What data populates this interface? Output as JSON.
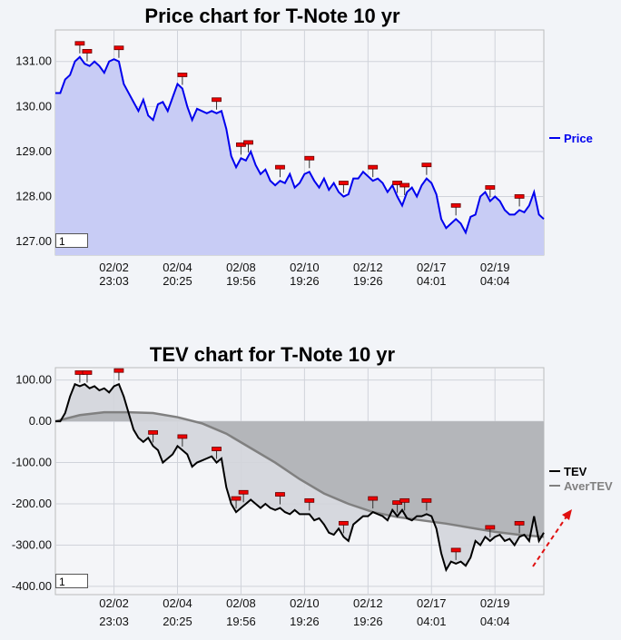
{
  "chart_data": [
    {
      "type": "area",
      "title": "Price chart for T-Note 10 yr",
      "ylim": [
        126.7,
        131.7
      ],
      "yticks": [
        "131.00",
        "130.00",
        "129.00",
        "128.00",
        "127.00"
      ],
      "ytick_values": [
        131,
        130,
        129,
        128,
        127
      ],
      "xticks": [
        {
          "date": "02/02",
          "time": "23:03"
        },
        {
          "date": "02/04",
          "time": "20:25"
        },
        {
          "date": "02/08",
          "time": "19:56"
        },
        {
          "date": "02/10",
          "time": "19:26"
        },
        {
          "date": "02/12",
          "time": "19:26"
        },
        {
          "date": "02/17",
          "time": "04:01"
        },
        {
          "date": "02/19",
          "time": "04:04"
        }
      ],
      "xtick_positions": [
        12,
        25,
        38,
        51,
        64,
        77,
        90
      ],
      "x_range": [
        0,
        100
      ],
      "series": [
        {
          "name": "Price",
          "color": "#0000ee",
          "fill": "#c8ccf5",
          "points": [
            [
              0,
              130.3
            ],
            [
              1,
              130.3
            ],
            [
              2,
              130.6
            ],
            [
              3,
              130.7
            ],
            [
              4,
              131.0
            ],
            [
              5,
              131.1
            ],
            [
              6,
              130.95
            ],
            [
              7,
              130.9
            ],
            [
              8,
              131.0
            ],
            [
              9,
              130.9
            ],
            [
              10,
              130.75
            ],
            [
              11,
              131.0
            ],
            [
              12,
              131.05
            ],
            [
              13,
              131.0
            ],
            [
              14,
              130.5
            ],
            [
              15,
              130.3
            ],
            [
              16,
              130.1
            ],
            [
              17,
              129.9
            ],
            [
              18,
              130.15
            ],
            [
              19,
              129.8
            ],
            [
              20,
              129.7
            ],
            [
              21,
              130.05
            ],
            [
              22,
              130.1
            ],
            [
              23,
              129.9
            ],
            [
              24,
              130.2
            ],
            [
              25,
              130.5
            ],
            [
              26,
              130.4
            ],
            [
              27,
              130.0
            ],
            [
              28,
              129.7
            ],
            [
              29,
              129.95
            ],
            [
              30,
              129.9
            ],
            [
              31,
              129.85
            ],
            [
              32,
              129.9
            ],
            [
              33,
              129.85
            ],
            [
              34,
              129.9
            ],
            [
              35,
              129.5
            ],
            [
              36,
              128.9
            ],
            [
              37,
              128.65
            ],
            [
              38,
              128.85
            ],
            [
              39,
              128.8
            ],
            [
              40,
              129.0
            ],
            [
              41,
              128.7
            ],
            [
              42,
              128.5
            ],
            [
              43,
              128.6
            ],
            [
              44,
              128.35
            ],
            [
              45,
              128.25
            ],
            [
              46,
              128.35
            ],
            [
              47,
              128.3
            ],
            [
              48,
              128.5
            ],
            [
              49,
              128.2
            ],
            [
              50,
              128.3
            ],
            [
              51,
              128.5
            ],
            [
              52,
              128.55
            ],
            [
              53,
              128.35
            ],
            [
              54,
              128.2
            ],
            [
              55,
              128.4
            ],
            [
              56,
              128.15
            ],
            [
              57,
              128.3
            ],
            [
              58,
              128.1
            ],
            [
              59,
              128.0
            ],
            [
              60,
              128.05
            ],
            [
              61,
              128.4
            ],
            [
              62,
              128.4
            ],
            [
              63,
              128.55
            ],
            [
              64,
              128.45
            ],
            [
              65,
              128.35
            ],
            [
              66,
              128.4
            ],
            [
              67,
              128.3
            ],
            [
              68,
              128.1
            ],
            [
              69,
              128.25
            ],
            [
              70,
              128.0
            ],
            [
              71,
              127.8
            ],
            [
              72,
              128.1
            ],
            [
              73,
              128.2
            ],
            [
              74,
              128.0
            ],
            [
              75,
              128.25
            ],
            [
              76,
              128.4
            ],
            [
              77,
              128.3
            ],
            [
              78,
              128.05
            ],
            [
              79,
              127.5
            ],
            [
              80,
              127.3
            ],
            [
              81,
              127.4
            ],
            [
              82,
              127.5
            ],
            [
              83,
              127.4
            ],
            [
              84,
              127.2
            ],
            [
              85,
              127.55
            ],
            [
              86,
              127.6
            ],
            [
              87,
              128.0
            ],
            [
              88,
              128.1
            ],
            [
              89,
              127.9
            ],
            [
              90,
              128.0
            ],
            [
              91,
              127.9
            ],
            [
              92,
              127.7
            ],
            [
              93,
              127.6
            ],
            [
              94,
              127.6
            ],
            [
              95,
              127.7
            ],
            [
              96,
              127.65
            ],
            [
              97,
              127.8
            ],
            [
              98,
              128.1
            ],
            [
              99,
              127.6
            ],
            [
              100,
              127.5
            ]
          ]
        }
      ],
      "markers_x": [
        5,
        6.5,
        13,
        26,
        33,
        38,
        39.5,
        46,
        52,
        59,
        65,
        70,
        71.5,
        76,
        82,
        89,
        95
      ]
    },
    {
      "type": "area",
      "title": "TEV chart for T-Note 10 yr",
      "ylim": [
        -420,
        130
      ],
      "yticks": [
        "100.00",
        "0.00",
        "-100.00",
        "-200.00",
        "-300.00",
        "-400.00"
      ],
      "ytick_values": [
        100,
        0,
        -100,
        -200,
        -300,
        -400
      ],
      "xticks": [
        {
          "date": "02/02",
          "time": "23:03"
        },
        {
          "date": "02/04",
          "time": "20:25"
        },
        {
          "date": "02/08",
          "time": "19:56"
        },
        {
          "date": "02/10",
          "time": "19:26"
        },
        {
          "date": "02/12",
          "time": "19:26"
        },
        {
          "date": "02/17",
          "time": "04:01"
        },
        {
          "date": "02/19",
          "time": "04:04"
        }
      ],
      "xtick_positions": [
        12,
        25,
        38,
        51,
        64,
        77,
        90
      ],
      "x_range": [
        0,
        100
      ],
      "series": [
        {
          "name": "TEV",
          "color": "#000000",
          "points": [
            [
              0,
              0
            ],
            [
              1,
              0
            ],
            [
              2,
              20
            ],
            [
              3,
              60
            ],
            [
              4,
              90
            ],
            [
              5,
              85
            ],
            [
              6,
              90
            ],
            [
              7,
              80
            ],
            [
              8,
              85
            ],
            [
              9,
              75
            ],
            [
              10,
              80
            ],
            [
              11,
              70
            ],
            [
              12,
              85
            ],
            [
              13,
              90
            ],
            [
              14,
              60
            ],
            [
              15,
              20
            ],
            [
              16,
              -20
            ],
            [
              17,
              -40
            ],
            [
              18,
              -50
            ],
            [
              19,
              -40
            ],
            [
              20,
              -60
            ],
            [
              21,
              -70
            ],
            [
              22,
              -100
            ],
            [
              23,
              -90
            ],
            [
              24,
              -80
            ],
            [
              25,
              -60
            ],
            [
              26,
              -70
            ],
            [
              27,
              -80
            ],
            [
              28,
              -110
            ],
            [
              29,
              -100
            ],
            [
              30,
              -95
            ],
            [
              31,
              -90
            ],
            [
              32,
              -85
            ],
            [
              33,
              -100
            ],
            [
              34,
              -90
            ],
            [
              35,
              -160
            ],
            [
              36,
              -200
            ],
            [
              37,
              -220
            ],
            [
              38,
              -210
            ],
            [
              39,
              -200
            ],
            [
              40,
              -190
            ],
            [
              41,
              -200
            ],
            [
              42,
              -210
            ],
            [
              43,
              -200
            ],
            [
              44,
              -210
            ],
            [
              45,
              -215
            ],
            [
              46,
              -210
            ],
            [
              47,
              -220
            ],
            [
              48,
              -225
            ],
            [
              49,
              -215
            ],
            [
              50,
              -225
            ],
            [
              51,
              -225
            ],
            [
              52,
              -225
            ],
            [
              53,
              -240
            ],
            [
              54,
              -235
            ],
            [
              55,
              -250
            ],
            [
              56,
              -270
            ],
            [
              57,
              -275
            ],
            [
              58,
              -260
            ],
            [
              59,
              -280
            ],
            [
              60,
              -290
            ],
            [
              61,
              -250
            ],
            [
              62,
              -240
            ],
            [
              63,
              -230
            ],
            [
              64,
              -230
            ],
            [
              65,
              -220
            ],
            [
              66,
              -225
            ],
            [
              67,
              -230
            ],
            [
              68,
              -240
            ],
            [
              69,
              -215
            ],
            [
              70,
              -230
            ],
            [
              71,
              -215
            ],
            [
              72,
              -235
            ],
            [
              73,
              -240
            ],
            [
              74,
              -230
            ],
            [
              75,
              -230
            ],
            [
              76,
              -225
            ],
            [
              77,
              -230
            ],
            [
              78,
              -260
            ],
            [
              79,
              -320
            ],
            [
              80,
              -360
            ],
            [
              81,
              -340
            ],
            [
              82,
              -345
            ],
            [
              83,
              -340
            ],
            [
              84,
              -350
            ],
            [
              85,
              -330
            ],
            [
              86,
              -290
            ],
            [
              87,
              -300
            ],
            [
              88,
              -280
            ],
            [
              89,
              -290
            ],
            [
              90,
              -280
            ],
            [
              91,
              -275
            ],
            [
              92,
              -290
            ],
            [
              93,
              -285
            ],
            [
              94,
              -300
            ],
            [
              95,
              -280
            ],
            [
              96,
              -275
            ],
            [
              97,
              -290
            ],
            [
              98,
              -230
            ],
            [
              99,
              -290
            ],
            [
              100,
              -270
            ]
          ]
        },
        {
          "name": "AverTEV",
          "color": "#808080",
          "points": [
            [
              0,
              0
            ],
            [
              5,
              15
            ],
            [
              10,
              22
            ],
            [
              15,
              22
            ],
            [
              20,
              20
            ],
            [
              25,
              10
            ],
            [
              30,
              -5
            ],
            [
              35,
              -30
            ],
            [
              40,
              -65
            ],
            [
              45,
              -100
            ],
            [
              50,
              -140
            ],
            [
              55,
              -175
            ],
            [
              60,
              -200
            ],
            [
              65,
              -220
            ],
            [
              70,
              -232
            ],
            [
              75,
              -240
            ],
            [
              80,
              -248
            ],
            [
              85,
              -258
            ],
            [
              90,
              -268
            ],
            [
              95,
              -275
            ],
            [
              100,
              -280
            ]
          ]
        }
      ],
      "markers_x": [
        5,
        6.5,
        13,
        20,
        26,
        33,
        37,
        38.5,
        46,
        52,
        59,
        65,
        70,
        71.5,
        76,
        82,
        89,
        95
      ]
    }
  ],
  "zoom": [
    "1",
    "1"
  ]
}
